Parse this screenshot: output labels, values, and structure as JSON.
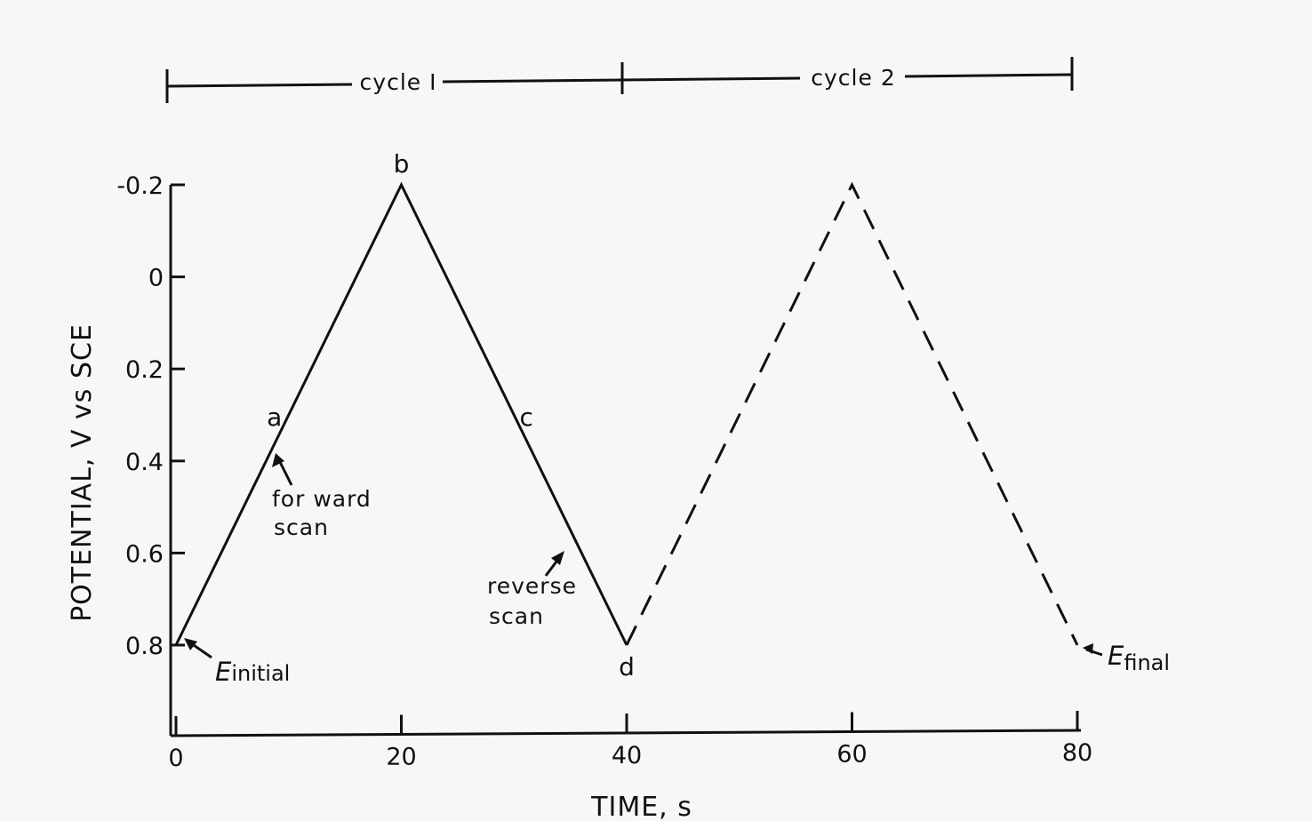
{
  "chart_data": {
    "type": "line",
    "x": [
      0,
      20,
      40,
      60,
      80
    ],
    "series": [
      {
        "segment": "cycle 1",
        "line_style": "solid",
        "x": [
          0,
          20,
          40
        ],
        "y": [
          0.8,
          -0.2,
          0.8
        ]
      },
      {
        "segment": "cycle 2",
        "line_style": "dashed",
        "x": [
          40,
          60,
          80
        ],
        "y": [
          0.8,
          -0.2,
          0.8
        ]
      }
    ],
    "xlabel": "TIME, s",
    "ylabel": "POTENTIAL, V vs SCE",
    "xlim": [
      0,
      80
    ],
    "ylim": [
      1.0,
      -0.2
    ],
    "y_inverted": true,
    "x_ticks": [
      "0",
      "20",
      "40",
      "60",
      "80"
    ],
    "y_ticks": [
      {
        "value": -0.2,
        "label": "-0.2"
      },
      {
        "value": 0.0,
        "label": "0"
      },
      {
        "value": 0.2,
        "label": "0.2"
      },
      {
        "value": 0.4,
        "label": "0.4"
      },
      {
        "value": 0.6,
        "label": "0.6"
      },
      {
        "value": 0.8,
        "label": "0.8"
      }
    ],
    "grid": false,
    "point_labels": [
      {
        "text": "a",
        "x": 10,
        "y": 0.3
      },
      {
        "text": "b",
        "x": 20,
        "y": -0.2
      },
      {
        "text": "c",
        "x": 30,
        "y": 0.3
      },
      {
        "text": "d",
        "x": 40,
        "y": 0.8
      }
    ],
    "annotations": {
      "forward_1": "for ward",
      "forward_2": "scan",
      "reverse_1": "reverse",
      "reverse_2": "scan",
      "e_initial": {
        "symbol": "E",
        "sub": "initial"
      },
      "e_final": {
        "symbol": "E",
        "sub": "final"
      }
    },
    "cycles": [
      {
        "label": "cycle I",
        "x_range": [
          0,
          40
        ]
      },
      {
        "label": "cycle 2",
        "x_range": [
          40,
          80
        ]
      }
    ]
  }
}
